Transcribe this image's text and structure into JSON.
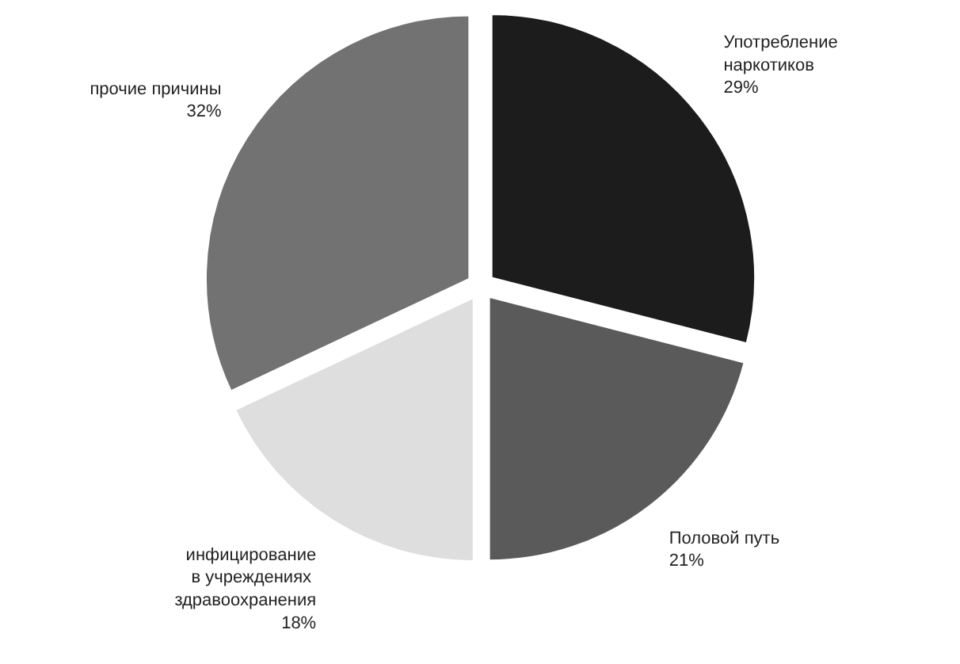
{
  "chart_data": {
    "type": "pie",
    "categories": [
      "Употребление\nнаркотиков",
      "Половой путь",
      "инфицирование\nв  учреждениях\nздравоохранения",
      "прочие причины"
    ],
    "values": [
      29,
      21,
      18,
      32
    ],
    "value_labels": [
      "29%",
      "21%",
      "18%",
      "32%"
    ],
    "colors": [
      "#1c1c1c",
      "#5a5a5a",
      "#dedede",
      "#727272"
    ]
  }
}
